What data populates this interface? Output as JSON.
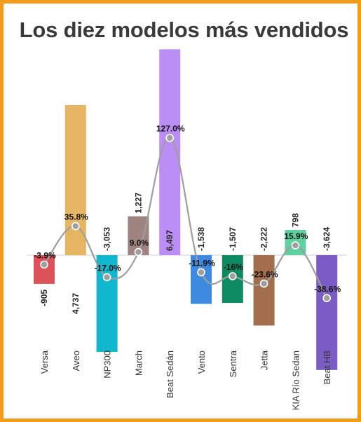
{
  "chart_data": {
    "type": "bar",
    "title": "Los diez modelos más vendidos",
    "categories": [
      "Versa",
      "Aveo",
      "NP300",
      "March",
      "Beat Sedán",
      "Vento",
      "Sentra",
      "Jetta",
      "KIA Río Sedan",
      "Beat HB"
    ],
    "series": [
      {
        "values": [
          -905,
          4737,
          -3053,
          1227,
          6497,
          -1538,
          -1507,
          -2222,
          798,
          -3624
        ],
        "labels": [
          "-905",
          "4,737",
          "-3,053",
          "1,227",
          "6,497",
          "-1,538",
          "-1,507",
          "-2,222",
          "798",
          "-3,624"
        ]
      },
      {
        "type": "line",
        "values": [
          -3.9,
          35.8,
          -17.0,
          9.0,
          127.0,
          -11.9,
          -16,
          -23.6,
          15.9,
          -38.6
        ],
        "labels": [
          "-3.9%",
          "35.8%",
          "-17.0%",
          "9.0%",
          "127.0%",
          "-11.9%",
          "-16%",
          "-23.6%",
          "15.9%",
          "-38.6%"
        ]
      }
    ],
    "bar_colors": [
      "#dd5159",
      "#e6b563",
      "#11b7cc",
      "#9e8381",
      "#bb8ef5",
      "#3d8ae0",
      "#0e8a62",
      "#a36e4e",
      "#5fd0a0",
      "#7a5cc4"
    ],
    "line_color": "#9e9e9e",
    "border_color": "#f39c1a"
  }
}
